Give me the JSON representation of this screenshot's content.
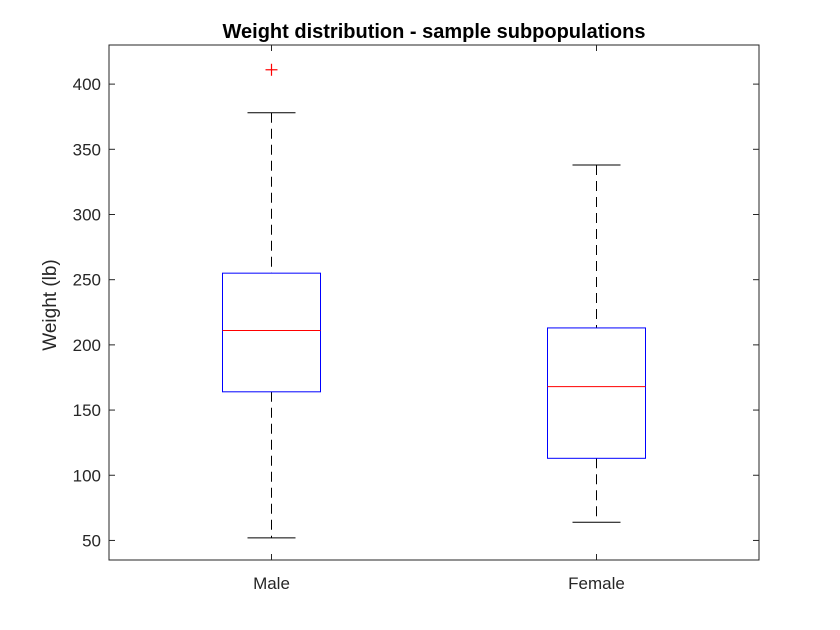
{
  "chart_data": {
    "type": "boxplot",
    "title": "Weight distribution - sample subpopulations",
    "xlabel": "",
    "ylabel": "Weight (lb)",
    "ylim": [
      35,
      430
    ],
    "yticks": [
      50,
      100,
      150,
      200,
      250,
      300,
      350,
      400
    ],
    "grid": false,
    "categories": [
      "Male",
      "Female"
    ],
    "boxes": [
      {
        "category": "Male",
        "whisker_low": 52,
        "q1": 164,
        "median": 211,
        "q3": 255,
        "whisker_high": 378,
        "outliers": [
          411
        ]
      },
      {
        "category": "Female",
        "whisker_low": 64,
        "q1": 113,
        "median": 168,
        "q3": 213,
        "whisker_high": 338,
        "outliers": []
      }
    ],
    "colors": {
      "box": "#0000ff",
      "median": "#ff0000",
      "whisker": "#000000",
      "outlier": "#ff0000",
      "axis": "#262626"
    }
  }
}
